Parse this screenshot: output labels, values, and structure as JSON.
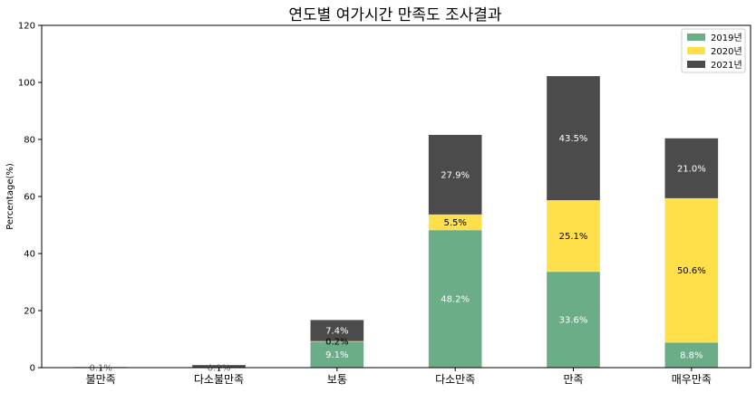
{
  "chart_data": {
    "type": "bar",
    "stacked": true,
    "title": "연도별 여가시간 만족도 조사결과",
    "xlabel": "",
    "ylabel": "Percentage(%)",
    "ylim": [
      0,
      120
    ],
    "yticks": [
      "0",
      "20",
      "40",
      "60",
      "80",
      "100",
      "120"
    ],
    "categories": [
      "불만족",
      "다소불만족",
      "보통",
      "다소만족",
      "만족",
      "매우만족"
    ],
    "series": [
      {
        "name": "2019년",
        "color": "#6aad87",
        "values": [
          0.1,
          0.1,
          9.1,
          48.2,
          33.6,
          8.8
        ],
        "labels": [
          "0.1%",
          "0.1%",
          "9.1%",
          "48.2%",
          "33.6%",
          "8.8%"
        ]
      },
      {
        "name": "2020년",
        "color": "#ffe04a",
        "values": [
          0,
          0,
          0.2,
          5.5,
          25.1,
          50.6
        ],
        "labels": [
          "",
          "",
          "0.2%",
          "5.5%",
          "25.1%",
          "50.6%"
        ]
      },
      {
        "name": "2021년",
        "color": "#4b4b4b",
        "values": [
          0.1,
          0.8,
          7.4,
          27.9,
          43.5,
          21.0
        ],
        "labels": [
          "",
          "",
          "7.4%",
          "27.9%",
          "43.5%",
          "21.0%"
        ]
      }
    ],
    "legend": {
      "position": "top-right"
    },
    "grid": false
  }
}
